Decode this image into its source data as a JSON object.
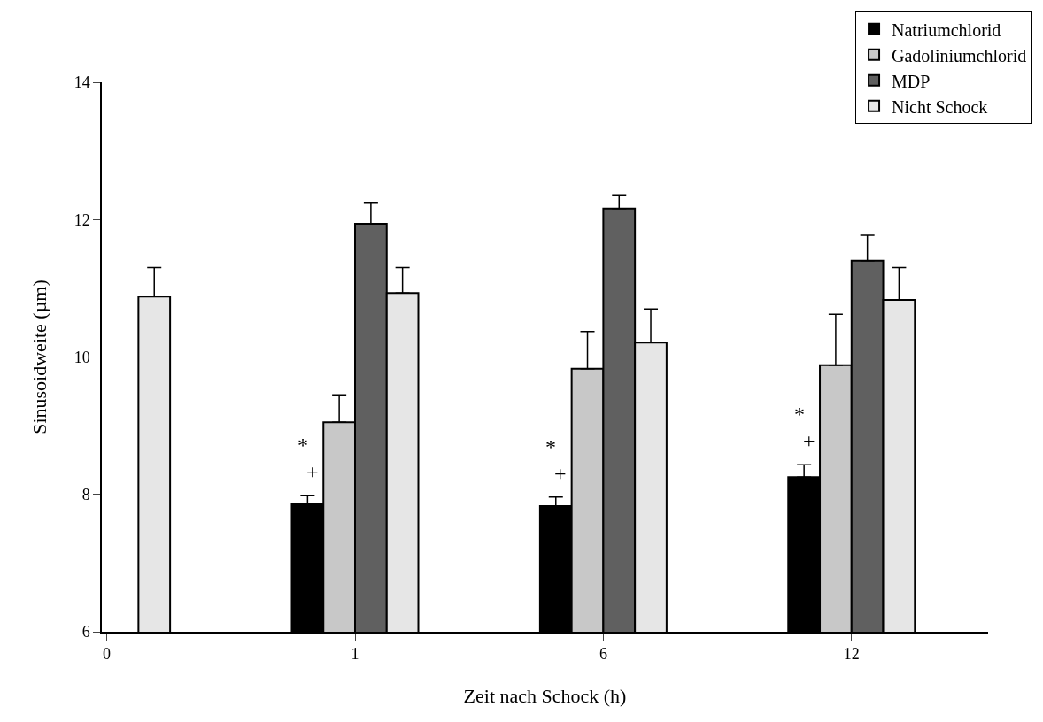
{
  "chart_data": {
    "type": "bar",
    "xlabel": "Zeit nach Schock (h)",
    "ylabel": "Sinusoidweite (µm)",
    "categories": [
      "0",
      "1",
      "6",
      "12"
    ],
    "series": [
      {
        "name": "Natriumchlorid",
        "color": "#000000",
        "values": [
          null,
          7.86,
          7.83,
          8.25
        ],
        "errors": [
          null,
          [
            7.86,
            7.98
          ],
          [
            7.83,
            7.96
          ],
          [
            8.25,
            8.43
          ]
        ]
      },
      {
        "name": "Gadoliniumchlorid",
        "color": "#c8c8c8",
        "values": [
          null,
          9.05,
          9.83,
          9.88
        ],
        "errors": [
          null,
          [
            9.05,
            9.45
          ],
          [
            9.83,
            10.37
          ],
          [
            9.88,
            10.62
          ]
        ]
      },
      {
        "name": "MDP",
        "color": "#606060",
        "values": [
          null,
          11.94,
          12.16,
          11.4
        ],
        "errors": [
          null,
          [
            11.94,
            12.25
          ],
          [
            12.16,
            12.36
          ],
          [
            11.4,
            11.77
          ]
        ]
      },
      {
        "name": "Nicht Schock",
        "color": "#e6e6e6",
        "values": [
          10.88,
          10.93,
          10.21,
          10.83
        ],
        "errors": [
          [
            10.88,
            11.3
          ],
          [
            10.93,
            11.3
          ],
          [
            10.21,
            10.7
          ],
          [
            10.83,
            11.3
          ]
        ]
      }
    ],
    "annotations": [
      "*",
      "+",
      "*",
      "+",
      "*",
      "+"
    ],
    "ylim": [
      6,
      14
    ],
    "yticks": [
      6,
      8,
      10,
      12,
      14
    ],
    "legend": "top right"
  }
}
